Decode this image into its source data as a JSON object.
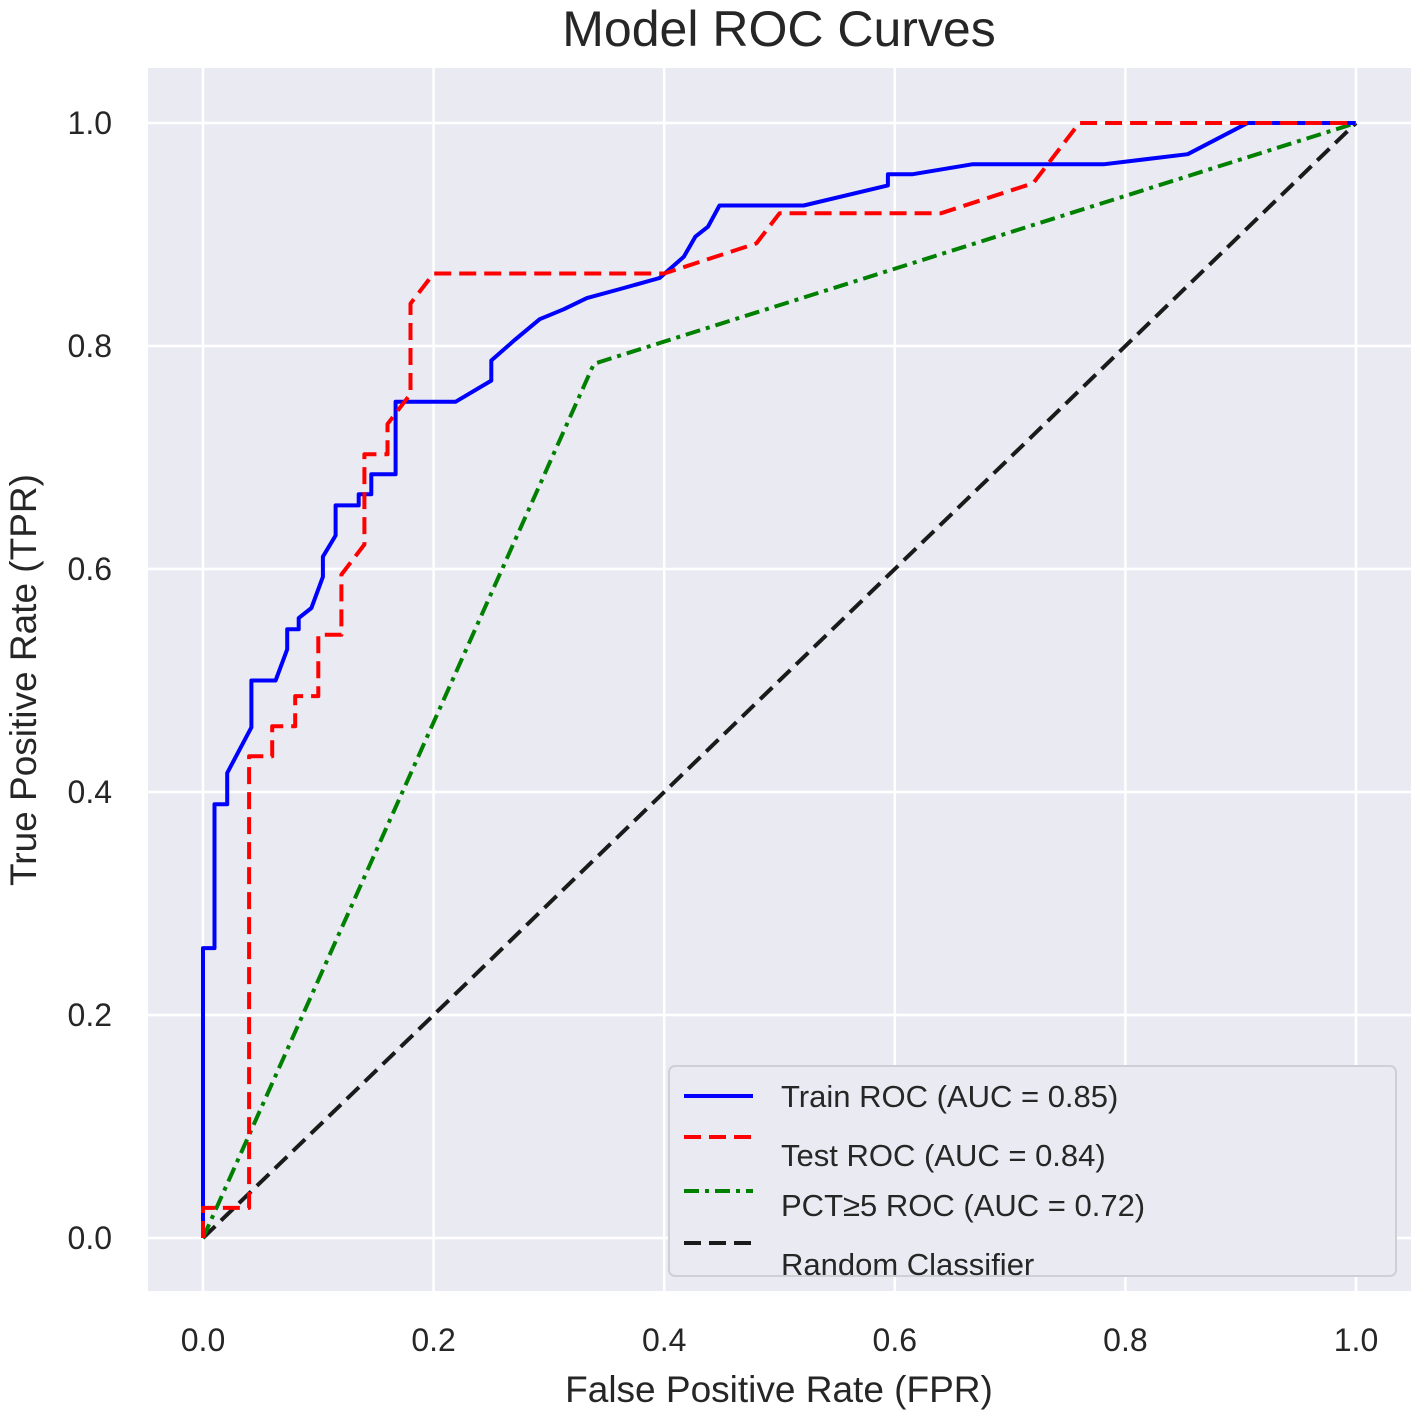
{
  "chart_data": {
    "type": "line",
    "title": "Model ROC Curves",
    "xlabel": "False Positive Rate (FPR)",
    "ylabel": "True Positive Rate (TPR)",
    "xlim": [
      -0.05,
      1.05
    ],
    "ylim": [
      -0.05,
      1.05
    ],
    "xticks": [
      "0.0",
      "0.2",
      "0.4",
      "0.6",
      "0.8",
      "1.0"
    ],
    "yticks": [
      "0.0",
      "0.2",
      "0.4",
      "0.6",
      "0.8",
      "1.0"
    ],
    "grid": true,
    "legend_position": "lower-right",
    "colors": {
      "plot_background": "#eaeaf2",
      "grid": "#ffffff",
      "train": "#0000ff",
      "test": "#ff0000",
      "pct": "#008000",
      "random": "#1a1a1a"
    },
    "series": [
      {
        "name": "Train ROC (AUC = 0.85)",
        "style": "solid",
        "color": "#0000ff",
        "x": [
          0,
          0,
          0.01,
          0.01,
          0.021,
          0.021,
          0.042,
          0.042,
          0.063,
          0.073,
          0.073,
          0.083,
          0.083,
          0.094,
          0.104,
          0.104,
          0.115,
          0.115,
          0.135,
          0.135,
          0.146,
          0.146,
          0.167,
          0.167,
          0.219,
          0.25,
          0.25,
          0.271,
          0.292,
          0.313,
          0.333,
          0.365,
          0.396,
          0.417,
          0.427,
          0.438,
          0.448,
          0.521,
          0.594,
          0.594,
          0.615,
          0.667,
          0.781,
          0.854,
          0.906,
          1.0
        ],
        "y": [
          0,
          0.26,
          0.26,
          0.389,
          0.389,
          0.417,
          0.458,
          0.5,
          0.5,
          0.528,
          0.546,
          0.546,
          0.556,
          0.565,
          0.593,
          0.611,
          0.63,
          0.657,
          0.657,
          0.667,
          0.667,
          0.685,
          0.685,
          0.75,
          0.75,
          0.769,
          0.787,
          0.806,
          0.824,
          0.833,
          0.843,
          0.852,
          0.861,
          0.88,
          0.898,
          0.907,
          0.926,
          0.926,
          0.944,
          0.954,
          0.954,
          0.963,
          0.963,
          0.972,
          1.0,
          1.0
        ]
      },
      {
        "name": "Test ROC (AUC = 0.84)",
        "style": "dashed",
        "color": "#ff0000",
        "x": [
          0,
          0,
          0.04,
          0.04,
          0.06,
          0.06,
          0.08,
          0.08,
          0.1,
          0.1,
          0.12,
          0.12,
          0.14,
          0.14,
          0.16,
          0.16,
          0.18,
          0.18,
          0.2,
          0.4,
          0.48,
          0.5,
          0.52,
          0.64,
          0.72,
          0.76,
          1.0
        ],
        "y": [
          0,
          0.027,
          0.027,
          0.432,
          0.432,
          0.459,
          0.459,
          0.486,
          0.486,
          0.541,
          0.541,
          0.595,
          0.622,
          0.703,
          0.703,
          0.73,
          0.757,
          0.838,
          0.865,
          0.865,
          0.892,
          0.919,
          0.919,
          0.919,
          0.946,
          1.0,
          1.0
        ]
      },
      {
        "name": "PCT≥5 ROC (AUC = 0.72)",
        "style": "dashdot",
        "color": "#008000",
        "x": [
          0,
          0.339,
          1.0
        ],
        "y": [
          0,
          0.784,
          1.0
        ]
      },
      {
        "name": "Random Classifier",
        "style": "dashed",
        "color": "#1a1a1a",
        "x": [
          0,
          1.0
        ],
        "y": [
          0,
          1.0
        ]
      }
    ]
  }
}
